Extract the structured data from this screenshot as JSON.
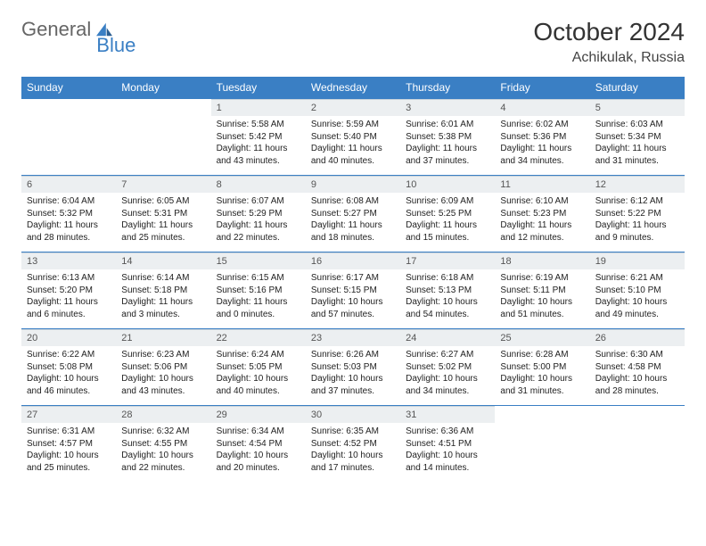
{
  "brand": {
    "part1": "General",
    "part2": "Blue"
  },
  "title": "October 2024",
  "location": "Achikulak, Russia",
  "columns": [
    "Sunday",
    "Monday",
    "Tuesday",
    "Wednesday",
    "Thursday",
    "Friday",
    "Saturday"
  ],
  "colors": {
    "headerBg": "#3a7fc4",
    "dayBg": "#eceff1",
    "border": "#3a7fc4"
  },
  "days": [
    {
      "n": "",
      "sr": "",
      "ss": "",
      "dl": ""
    },
    {
      "n": "",
      "sr": "",
      "ss": "",
      "dl": ""
    },
    {
      "n": "1",
      "sr": "Sunrise: 5:58 AM",
      "ss": "Sunset: 5:42 PM",
      "dl": "Daylight: 11 hours and 43 minutes."
    },
    {
      "n": "2",
      "sr": "Sunrise: 5:59 AM",
      "ss": "Sunset: 5:40 PM",
      "dl": "Daylight: 11 hours and 40 minutes."
    },
    {
      "n": "3",
      "sr": "Sunrise: 6:01 AM",
      "ss": "Sunset: 5:38 PM",
      "dl": "Daylight: 11 hours and 37 minutes."
    },
    {
      "n": "4",
      "sr": "Sunrise: 6:02 AM",
      "ss": "Sunset: 5:36 PM",
      "dl": "Daylight: 11 hours and 34 minutes."
    },
    {
      "n": "5",
      "sr": "Sunrise: 6:03 AM",
      "ss": "Sunset: 5:34 PM",
      "dl": "Daylight: 11 hours and 31 minutes."
    },
    {
      "n": "6",
      "sr": "Sunrise: 6:04 AM",
      "ss": "Sunset: 5:32 PM",
      "dl": "Daylight: 11 hours and 28 minutes."
    },
    {
      "n": "7",
      "sr": "Sunrise: 6:05 AM",
      "ss": "Sunset: 5:31 PM",
      "dl": "Daylight: 11 hours and 25 minutes."
    },
    {
      "n": "8",
      "sr": "Sunrise: 6:07 AM",
      "ss": "Sunset: 5:29 PM",
      "dl": "Daylight: 11 hours and 22 minutes."
    },
    {
      "n": "9",
      "sr": "Sunrise: 6:08 AM",
      "ss": "Sunset: 5:27 PM",
      "dl": "Daylight: 11 hours and 18 minutes."
    },
    {
      "n": "10",
      "sr": "Sunrise: 6:09 AM",
      "ss": "Sunset: 5:25 PM",
      "dl": "Daylight: 11 hours and 15 minutes."
    },
    {
      "n": "11",
      "sr": "Sunrise: 6:10 AM",
      "ss": "Sunset: 5:23 PM",
      "dl": "Daylight: 11 hours and 12 minutes."
    },
    {
      "n": "12",
      "sr": "Sunrise: 6:12 AM",
      "ss": "Sunset: 5:22 PM",
      "dl": "Daylight: 11 hours and 9 minutes."
    },
    {
      "n": "13",
      "sr": "Sunrise: 6:13 AM",
      "ss": "Sunset: 5:20 PM",
      "dl": "Daylight: 11 hours and 6 minutes."
    },
    {
      "n": "14",
      "sr": "Sunrise: 6:14 AM",
      "ss": "Sunset: 5:18 PM",
      "dl": "Daylight: 11 hours and 3 minutes."
    },
    {
      "n": "15",
      "sr": "Sunrise: 6:15 AM",
      "ss": "Sunset: 5:16 PM",
      "dl": "Daylight: 11 hours and 0 minutes."
    },
    {
      "n": "16",
      "sr": "Sunrise: 6:17 AM",
      "ss": "Sunset: 5:15 PM",
      "dl": "Daylight: 10 hours and 57 minutes."
    },
    {
      "n": "17",
      "sr": "Sunrise: 6:18 AM",
      "ss": "Sunset: 5:13 PM",
      "dl": "Daylight: 10 hours and 54 minutes."
    },
    {
      "n": "18",
      "sr": "Sunrise: 6:19 AM",
      "ss": "Sunset: 5:11 PM",
      "dl": "Daylight: 10 hours and 51 minutes."
    },
    {
      "n": "19",
      "sr": "Sunrise: 6:21 AM",
      "ss": "Sunset: 5:10 PM",
      "dl": "Daylight: 10 hours and 49 minutes."
    },
    {
      "n": "20",
      "sr": "Sunrise: 6:22 AM",
      "ss": "Sunset: 5:08 PM",
      "dl": "Daylight: 10 hours and 46 minutes."
    },
    {
      "n": "21",
      "sr": "Sunrise: 6:23 AM",
      "ss": "Sunset: 5:06 PM",
      "dl": "Daylight: 10 hours and 43 minutes."
    },
    {
      "n": "22",
      "sr": "Sunrise: 6:24 AM",
      "ss": "Sunset: 5:05 PM",
      "dl": "Daylight: 10 hours and 40 minutes."
    },
    {
      "n": "23",
      "sr": "Sunrise: 6:26 AM",
      "ss": "Sunset: 5:03 PM",
      "dl": "Daylight: 10 hours and 37 minutes."
    },
    {
      "n": "24",
      "sr": "Sunrise: 6:27 AM",
      "ss": "Sunset: 5:02 PM",
      "dl": "Daylight: 10 hours and 34 minutes."
    },
    {
      "n": "25",
      "sr": "Sunrise: 6:28 AM",
      "ss": "Sunset: 5:00 PM",
      "dl": "Daylight: 10 hours and 31 minutes."
    },
    {
      "n": "26",
      "sr": "Sunrise: 6:30 AM",
      "ss": "Sunset: 4:58 PM",
      "dl": "Daylight: 10 hours and 28 minutes."
    },
    {
      "n": "27",
      "sr": "Sunrise: 6:31 AM",
      "ss": "Sunset: 4:57 PM",
      "dl": "Daylight: 10 hours and 25 minutes."
    },
    {
      "n": "28",
      "sr": "Sunrise: 6:32 AM",
      "ss": "Sunset: 4:55 PM",
      "dl": "Daylight: 10 hours and 22 minutes."
    },
    {
      "n": "29",
      "sr": "Sunrise: 6:34 AM",
      "ss": "Sunset: 4:54 PM",
      "dl": "Daylight: 10 hours and 20 minutes."
    },
    {
      "n": "30",
      "sr": "Sunrise: 6:35 AM",
      "ss": "Sunset: 4:52 PM",
      "dl": "Daylight: 10 hours and 17 minutes."
    },
    {
      "n": "31",
      "sr": "Sunrise: 6:36 AM",
      "ss": "Sunset: 4:51 PM",
      "dl": "Daylight: 10 hours and 14 minutes."
    },
    {
      "n": "",
      "sr": "",
      "ss": "",
      "dl": ""
    },
    {
      "n": "",
      "sr": "",
      "ss": "",
      "dl": ""
    }
  ]
}
